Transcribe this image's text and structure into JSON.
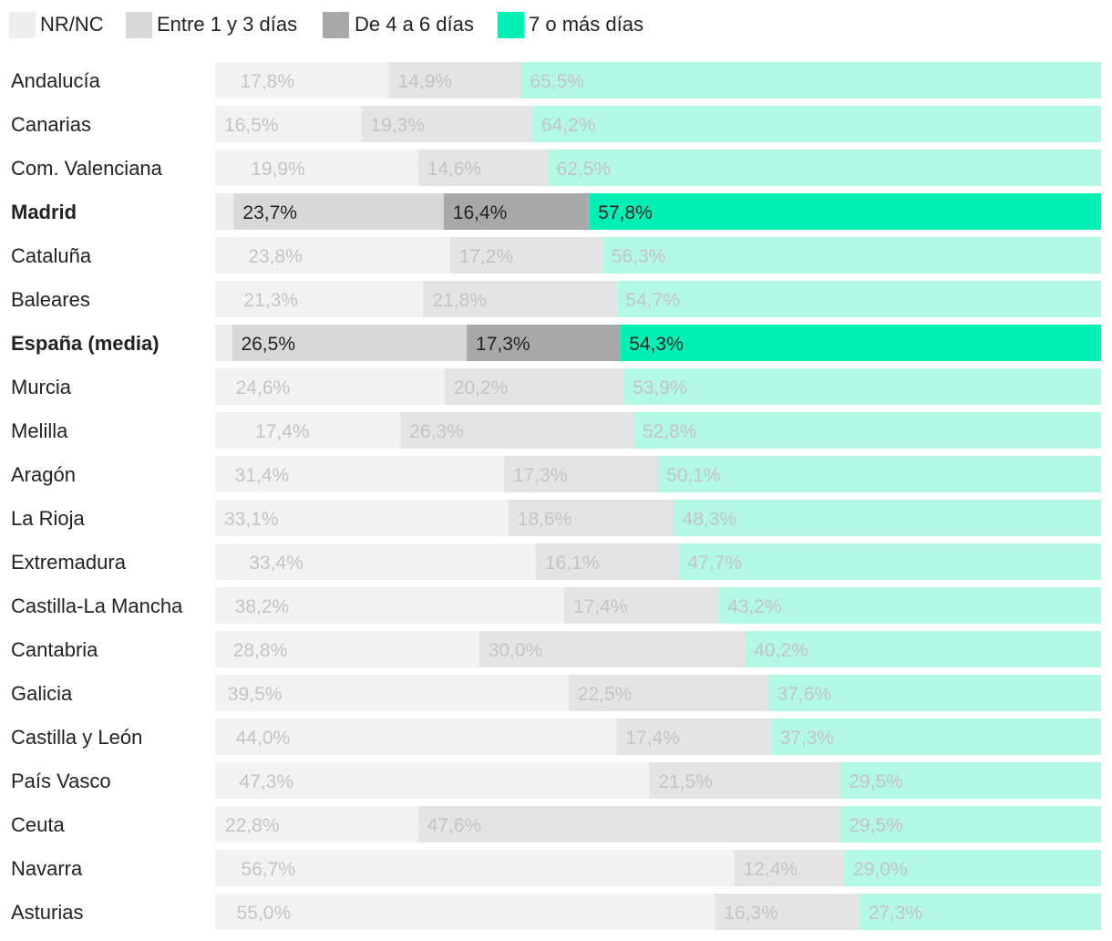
{
  "chart_data": {
    "type": "bar",
    "orientation": "horizontal",
    "stacked": true,
    "normalized": true,
    "highlight": [
      "Madrid",
      "España (media)"
    ],
    "legend": [
      {
        "name": "NR/NC",
        "color": "#eeeeee"
      },
      {
        "name": "Entre 1 y 3 días",
        "color": "#d8d8d8"
      },
      {
        "name": "De 4 a 6 días",
        "color": "#a8a8a8"
      },
      {
        "name": "7 o más días",
        "color": "#00f0b5"
      }
    ],
    "categories": [
      "Andalucía",
      "Canarias",
      "Com. Valenciana",
      "Madrid",
      "Cataluña",
      "Baleares",
      "España (media)",
      "Murcia",
      "Melilla",
      "Aragón",
      "La Rioja",
      "Extremadura",
      "Castilla-La Mancha",
      "Cantabria",
      "Galicia",
      "Castilla y León",
      "País Vasco",
      "Ceuta",
      "Navarra",
      "Asturias"
    ],
    "series": [
      {
        "name": "NR/NC",
        "values": [
          1.8,
          0.0,
          3.0,
          2.1,
          2.7,
          2.2,
          1.9,
          1.3,
          3.5,
          1.2,
          0.0,
          2.8,
          1.2,
          1.0,
          0.4,
          1.3,
          1.7,
          0.1,
          1.9,
          1.4
        ]
      },
      {
        "name": "Entre 1 y 3 días",
        "values": [
          17.8,
          16.5,
          19.9,
          23.7,
          23.8,
          21.3,
          26.5,
          24.6,
          17.4,
          31.4,
          33.1,
          33.4,
          38.2,
          28.8,
          39.5,
          44.0,
          47.3,
          22.8,
          56.7,
          55.0
        ]
      },
      {
        "name": "De 4 a 6 días",
        "values": [
          14.9,
          19.3,
          14.6,
          16.4,
          17.2,
          21.8,
          17.3,
          20.2,
          26.3,
          17.3,
          18.6,
          16.1,
          17.4,
          30.0,
          22.5,
          17.4,
          21.5,
          47.6,
          12.4,
          16.3
        ]
      },
      {
        "name": "7 o más días",
        "values": [
          65.5,
          64.2,
          62.5,
          57.8,
          56.3,
          54.7,
          54.3,
          53.9,
          52.8,
          50.1,
          48.3,
          47.7,
          43.2,
          40.2,
          37.6,
          37.3,
          29.5,
          29.5,
          29.0,
          27.3
        ]
      }
    ],
    "labels": {
      "Entre 1 y 3 días": [
        "17,8%",
        "16,5%",
        "19,9%",
        "23,7%",
        "23,8%",
        "21,3%",
        "26,5%",
        "24,6%",
        "17,4%",
        "31,4%",
        "33,1%",
        "33,4%",
        "38,2%",
        "28,8%",
        "39,5%",
        "44,0%",
        "47,3%",
        "22,8%",
        "56,7%",
        "55,0%"
      ],
      "De 4 a 6 días": [
        "14,9%",
        "19,3%",
        "14,6%",
        "16,4%",
        "17,2%",
        "21,8%",
        "17,3%",
        "20,2%",
        "26,3%",
        "17,3%",
        "18,6%",
        "16,1%",
        "17,4%",
        "30,0%",
        "22,5%",
        "17,4%",
        "21,5%",
        "47,6%",
        "12,4%",
        "16,3%"
      ],
      "7 o más días": [
        "65,5%",
        "64,2%",
        "62,5%",
        "57,8%",
        "56,3%",
        "54,7%",
        "54,3%",
        "53,9%",
        "52,8%",
        "50,1%",
        "48,3%",
        "47,7%",
        "43,2%",
        "40,2%",
        "37,6%",
        "37,3%",
        "29,5%",
        "29,5%",
        "29,0%",
        "27,3%"
      ]
    },
    "xlim": [
      0,
      100
    ],
    "title": "",
    "xlabel": "",
    "ylabel": ""
  }
}
